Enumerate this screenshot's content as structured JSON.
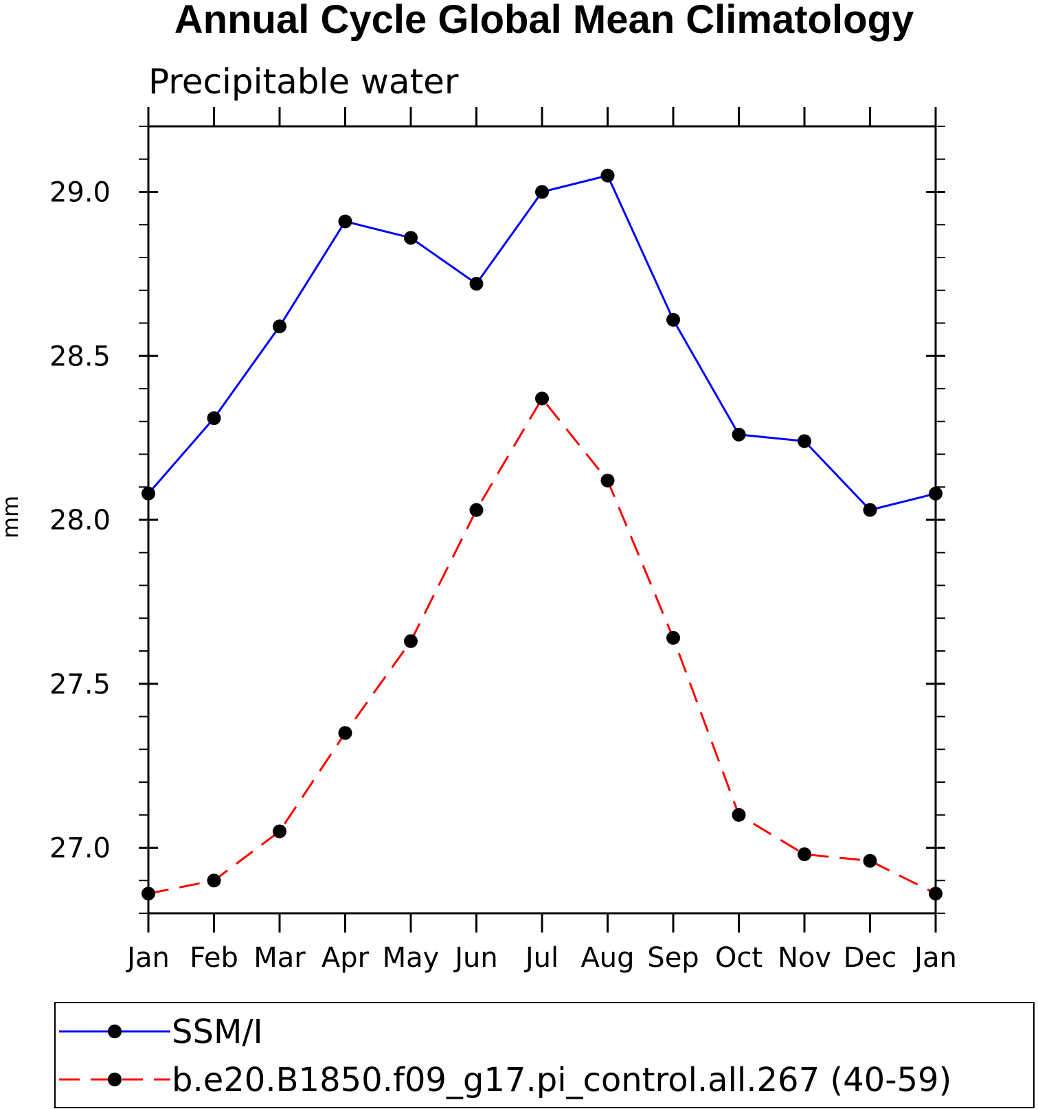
{
  "chart_data": {
    "type": "line",
    "title": "Annual Cycle Global Mean Climatology",
    "subtitle": "Precipitable water",
    "xlabel": "",
    "ylabel": "mm",
    "categories": [
      "Jan",
      "Feb",
      "Mar",
      "Apr",
      "May",
      "Jun",
      "Jul",
      "Aug",
      "Sep",
      "Oct",
      "Nov",
      "Dec",
      "Jan"
    ],
    "ylim": [
      26.8,
      29.2
    ],
    "yticks": [
      "27.0",
      "27.5",
      "28.0",
      "28.5",
      "29.0"
    ],
    "series": [
      {
        "name": "SSM/I",
        "color": "#0000ff",
        "dash": "solid",
        "marker": "filled-circle",
        "values": [
          28.08,
          28.31,
          28.59,
          28.91,
          28.86,
          28.72,
          29.0,
          29.05,
          28.61,
          28.26,
          28.24,
          28.03,
          28.08
        ]
      },
      {
        "name": "b.e20.B1850.f09_g17.pi_control.all.267 (40-59)",
        "color": "#ff0000",
        "dash": "dashed",
        "marker": "filled-circle",
        "values": [
          26.86,
          26.9,
          27.05,
          27.35,
          27.63,
          28.03,
          28.37,
          28.12,
          27.64,
          27.1,
          26.98,
          26.96,
          26.86
        ]
      }
    ],
    "grid": false,
    "legend_position": "bottom"
  }
}
